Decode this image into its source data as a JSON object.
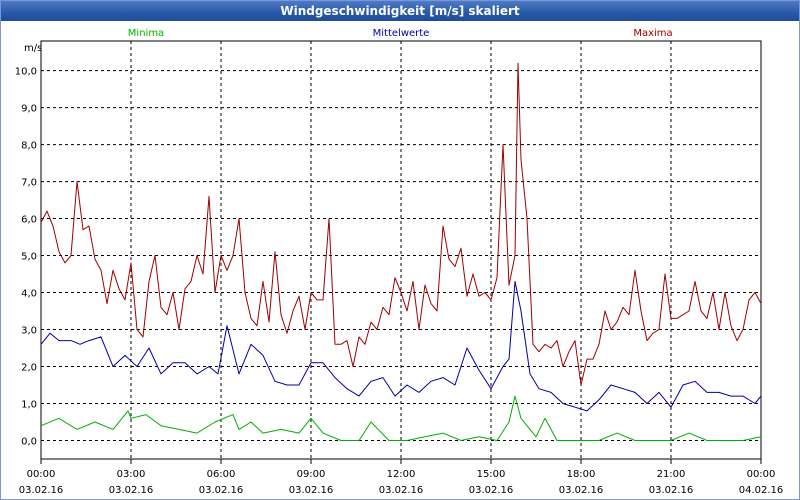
{
  "window": {
    "title": "Windgeschwindigkeit [m/s] skaliert"
  },
  "colors": {
    "minima": "#00B000",
    "mean": "#0000A8",
    "maxima": "#A00000",
    "grid": "#000000",
    "title_bg": "#2B5AA8"
  },
  "chart_data": {
    "type": "line",
    "title": "Windgeschwindigkeit [m/s] skaliert",
    "ylabel": "m/s",
    "xlabel": "",
    "ylim": [
      -0.5,
      10.8
    ],
    "yticks": [
      "0,0",
      "1,0",
      "2,0",
      "3,0",
      "4,0",
      "5,0",
      "6,0",
      "7,0",
      "8,0",
      "9,0",
      "10,0"
    ],
    "xlim": [
      0,
      24
    ],
    "xticks": [
      {
        "time": "00:00",
        "date": "03.02.16"
      },
      {
        "time": "03:00",
        "date": "03.02.16"
      },
      {
        "time": "06:00",
        "date": "03.02.16"
      },
      {
        "time": "09:00",
        "date": "03.02.16"
      },
      {
        "time": "12:00",
        "date": "03.02.16"
      },
      {
        "time": "15:00",
        "date": "03.02.16"
      },
      {
        "time": "18:00",
        "date": "03.02.16"
      },
      {
        "time": "21:00",
        "date": "03.02.16"
      },
      {
        "time": "00:00",
        "date": "04.02.16"
      }
    ],
    "grid": true,
    "series": [
      {
        "name": "Minima",
        "color": "#00B000",
        "x": [
          0,
          0.6,
          1.2,
          1.8,
          2.4,
          2.9,
          3.0,
          3.5,
          4.0,
          4.6,
          5.2,
          5.8,
          6.4,
          6.6,
          7.0,
          7.4,
          8.0,
          8.6,
          9.0,
          9.4,
          10.0,
          10.6,
          11.0,
          11.6,
          12.2,
          12.8,
          13.4,
          14.0,
          14.6,
          15.2,
          15.6,
          15.8,
          16.0,
          16.5,
          16.8,
          17.2,
          17.6,
          18.0,
          18.6,
          19.2,
          19.8,
          20.4,
          21.0,
          21.6,
          22.2,
          22.8,
          23.4,
          24.0
        ],
        "values": [
          0.4,
          0.6,
          0.3,
          0.5,
          0.3,
          0.8,
          0.6,
          0.7,
          0.4,
          0.3,
          0.2,
          0.5,
          0.7,
          0.3,
          0.5,
          0.2,
          0.3,
          0.2,
          0.6,
          0.2,
          0.0,
          0.0,
          0.5,
          0.0,
          0.0,
          0.1,
          0.2,
          0.0,
          0.1,
          0.0,
          0.5,
          1.2,
          0.6,
          0.1,
          0.6,
          0.0,
          0.0,
          0.0,
          0.0,
          0.2,
          0.0,
          0.0,
          0.0,
          0.2,
          0.0,
          0.0,
          0.0,
          0.1
        ]
      },
      {
        "name": "Mittelwerte",
        "color": "#0000A8",
        "x": [
          0,
          0.3,
          0.6,
          1.0,
          1.3,
          1.6,
          2.0,
          2.4,
          2.8,
          3.2,
          3.6,
          4.0,
          4.4,
          4.8,
          5.2,
          5.6,
          5.9,
          6.2,
          6.6,
          7.0,
          7.4,
          7.8,
          8.2,
          8.6,
          9.0,
          9.4,
          9.8,
          10.2,
          10.6,
          11.0,
          11.4,
          11.8,
          12.2,
          12.6,
          13.0,
          13.4,
          13.8,
          14.2,
          14.6,
          15.0,
          15.4,
          15.6,
          15.8,
          16.0,
          16.3,
          16.6,
          17.0,
          17.4,
          17.8,
          18.2,
          18.6,
          19.0,
          19.4,
          19.8,
          20.2,
          20.6,
          21.0,
          21.4,
          21.8,
          22.2,
          22.6,
          23.0,
          23.4,
          23.8,
          24.0
        ],
        "values": [
          2.6,
          2.9,
          2.7,
          2.7,
          2.6,
          2.7,
          2.8,
          2.0,
          2.3,
          2.0,
          2.5,
          1.8,
          2.1,
          2.1,
          1.8,
          2.0,
          1.8,
          3.1,
          1.8,
          2.6,
          2.3,
          1.6,
          1.5,
          1.5,
          2.1,
          2.1,
          1.7,
          1.4,
          1.2,
          1.6,
          1.7,
          1.2,
          1.5,
          1.3,
          1.6,
          1.7,
          1.5,
          2.5,
          1.9,
          1.4,
          2.0,
          2.2,
          4.3,
          3.5,
          1.8,
          1.4,
          1.3,
          1.0,
          0.9,
          0.8,
          1.1,
          1.5,
          1.4,
          1.3,
          1.0,
          1.3,
          0.9,
          1.5,
          1.6,
          1.3,
          1.3,
          1.2,
          1.2,
          1.0,
          1.2
        ]
      },
      {
        "name": "Maxima",
        "color": "#A00000",
        "x": [
          0,
          0.2,
          0.4,
          0.6,
          0.8,
          1.0,
          1.2,
          1.4,
          1.6,
          1.8,
          2.0,
          2.2,
          2.4,
          2.6,
          2.8,
          3.0,
          3.2,
          3.4,
          3.6,
          3.8,
          4.0,
          4.2,
          4.4,
          4.6,
          4.8,
          5.0,
          5.2,
          5.4,
          5.6,
          5.8,
          6.0,
          6.2,
          6.4,
          6.6,
          6.8,
          7.0,
          7.2,
          7.4,
          7.6,
          7.8,
          8.0,
          8.2,
          8.4,
          8.6,
          8.8,
          9.0,
          9.2,
          9.4,
          9.6,
          9.8,
          10.0,
          10.2,
          10.4,
          10.6,
          10.8,
          11.0,
          11.2,
          11.4,
          11.6,
          11.8,
          12.0,
          12.2,
          12.4,
          12.6,
          12.8,
          13.0,
          13.2,
          13.4,
          13.6,
          13.8,
          14.0,
          14.2,
          14.4,
          14.6,
          14.8,
          15.0,
          15.2,
          15.4,
          15.6,
          15.8,
          15.9,
          16.0,
          16.2,
          16.4,
          16.6,
          16.8,
          17.0,
          17.2,
          17.4,
          17.6,
          17.8,
          18.0,
          18.2,
          18.4,
          18.6,
          18.8,
          19.0,
          19.2,
          19.4,
          19.6,
          19.8,
          20.0,
          20.2,
          20.4,
          20.6,
          20.8,
          21.0,
          21.2,
          21.4,
          21.6,
          21.8,
          22.0,
          22.2,
          22.4,
          22.6,
          22.8,
          23.0,
          23.2,
          23.4,
          23.6,
          23.8,
          24.0
        ],
        "values": [
          5.9,
          6.2,
          5.8,
          5.1,
          4.8,
          5.0,
          7.0,
          5.7,
          5.8,
          4.9,
          4.6,
          3.7,
          4.6,
          4.1,
          3.8,
          4.8,
          3.0,
          2.8,
          4.3,
          5.0,
          3.6,
          3.4,
          4.0,
          3.0,
          4.1,
          4.3,
          5.0,
          4.5,
          6.6,
          4.0,
          5.0,
          4.6,
          5.0,
          6.0,
          4.0,
          3.3,
          3.1,
          4.3,
          3.2,
          5.1,
          3.4,
          2.9,
          3.5,
          3.9,
          3.0,
          4.0,
          3.8,
          3.8,
          6.0,
          2.6,
          2.6,
          2.7,
          2.0,
          2.8,
          2.6,
          3.2,
          3.0,
          3.6,
          3.4,
          4.4,
          4.0,
          3.5,
          4.3,
          3.0,
          4.2,
          3.7,
          3.5,
          5.8,
          4.9,
          4.7,
          5.2,
          3.9,
          4.5,
          3.9,
          4.0,
          3.8,
          4.4,
          8.0,
          4.2,
          5.0,
          10.2,
          7.6,
          6.0,
          2.6,
          2.4,
          2.6,
          2.5,
          2.7,
          2.0,
          2.4,
          2.7,
          1.5,
          2.2,
          2.2,
          2.6,
          3.5,
          3.0,
          3.2,
          3.6,
          3.4,
          4.6,
          3.5,
          2.7,
          2.9,
          3.0,
          4.5,
          3.3,
          3.3,
          3.4,
          3.5,
          4.3,
          3.5,
          3.3,
          4.0,
          3.0,
          4.0,
          3.1,
          2.7,
          3.0,
          3.8,
          4.0,
          3.7
        ]
      }
    ]
  }
}
